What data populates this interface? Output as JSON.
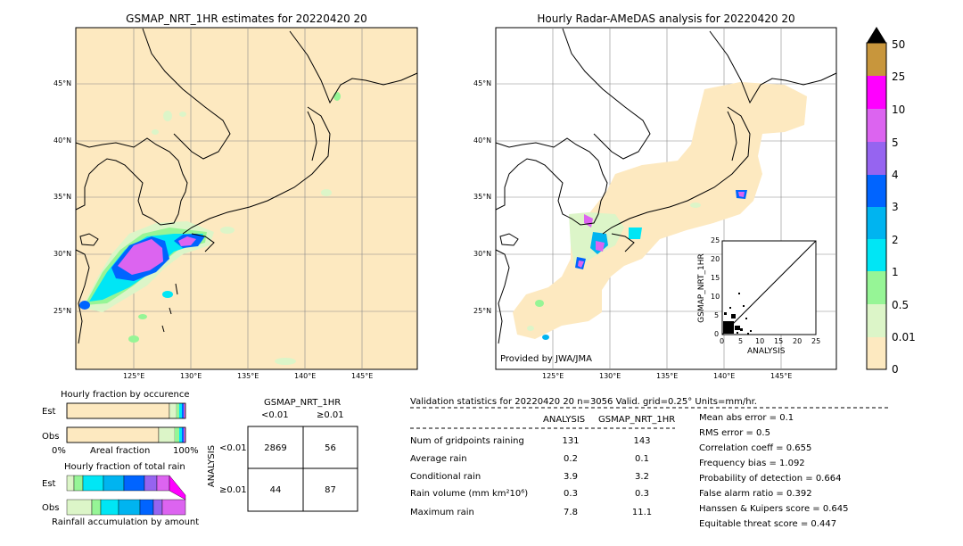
{
  "map_left": {
    "title": "GSMAP_NRT_1HR estimates for 20220420 20",
    "lat_labels": [
      "45°N",
      "40°N",
      "35°N",
      "30°N",
      "25°N"
    ],
    "lon_labels": [
      "125°E",
      "130°E",
      "135°E",
      "140°E",
      "145°E"
    ]
  },
  "map_right": {
    "title": "Hourly Radar-AMeDAS analysis for 20220420 20",
    "lat_labels": [
      "45°N",
      "40°N",
      "35°N",
      "30°N",
      "25°N"
    ],
    "lon_labels": [
      "125°E",
      "130°E",
      "135°E",
      "140°E",
      "145°E"
    ],
    "credit": "Provided by JWA/JMA"
  },
  "scatter_inset": {
    "xlabel": "ANALYSIS",
    "ylabel": "GSMAP_NRT_1HR",
    "ticks": [
      "0",
      "5",
      "10",
      "15",
      "20",
      "25"
    ]
  },
  "colorbar": {
    "labels": [
      "50",
      "25",
      "10",
      "5",
      "4",
      "3",
      "2",
      "1",
      "0.5",
      "0.01",
      "0"
    ],
    "colors": [
      "#c8963c",
      "#ff00ff",
      "#dc64f0",
      "#9664f0",
      "#0064ff",
      "#00b4f0",
      "#00e6f5",
      "#96f596",
      "#dcf5c8",
      "#fde9c0"
    ]
  },
  "hourly_fraction_occurrence": {
    "title": "Hourly fraction by occurence",
    "rows": [
      "Est",
      "Obs"
    ],
    "xlabel_left": "0%",
    "xlabel_mid": "Areal fraction",
    "xlabel_right": "100%"
  },
  "hourly_fraction_rain": {
    "title": "Hourly fraction of total rain",
    "rows": [
      "Est",
      "Obs"
    ],
    "xlabel": "Rainfall accumulation by amount"
  },
  "contingency": {
    "title": "GSMAP_NRT_1HR",
    "col_headers": [
      "<0.01",
      "≥0.01"
    ],
    "row_axis": "ANALYSIS",
    "row_headers": [
      "<0.01",
      "≥0.01"
    ],
    "cells": [
      [
        "2869",
        "56"
      ],
      [
        "44",
        "87"
      ]
    ]
  },
  "validation": {
    "header": "Validation statistics for 20220420 20  n=3056 Valid. grid=0.25° Units=mm/hr.",
    "col_analysis": "ANALYSIS",
    "col_gsmap": "GSMAP_NRT_1HR",
    "rows": [
      {
        "label": "Num of gridpoints raining",
        "analysis": "131",
        "gsmap": "143"
      },
      {
        "label": "Average rain",
        "analysis": "0.2",
        "gsmap": "0.1"
      },
      {
        "label": "Conditional rain",
        "analysis": "3.9",
        "gsmap": "3.2"
      },
      {
        "label": "Rain volume (mm km²10⁶)",
        "analysis": "0.3",
        "gsmap": "0.3"
      },
      {
        "label": "Maximum rain",
        "analysis": "7.8",
        "gsmap": "11.1"
      }
    ],
    "scores": [
      "Mean abs error =    0.1",
      "RMS error =    0.5",
      "Correlation coeff =  0.655",
      "Frequency bias =  1.092",
      "Probability of detection =  0.664",
      "False alarm ratio =  0.392",
      "Hanssen & Kuipers score =  0.645",
      "Equitable threat score =  0.447"
    ]
  },
  "chart_data": [
    {
      "type": "heatmap",
      "title": "GSMAP_NRT_1HR estimates for 20220420 20",
      "xlabel": "",
      "ylabel": ""
    },
    {
      "type": "heatmap",
      "title": "Hourly Radar-AMeDAS analysis for 20220420 20",
      "xlabel": "",
      "ylabel": ""
    },
    {
      "type": "scatter",
      "xlabel": "ANALYSIS",
      "ylabel": "GSMAP_NRT_1HR",
      "xlim": [
        0,
        25
      ],
      "ylim": [
        0,
        25
      ]
    },
    {
      "type": "table",
      "title": "GSMAP_NRT_1HR",
      "cells": [
        [
          2869,
          56
        ],
        [
          44,
          87
        ]
      ]
    }
  ]
}
